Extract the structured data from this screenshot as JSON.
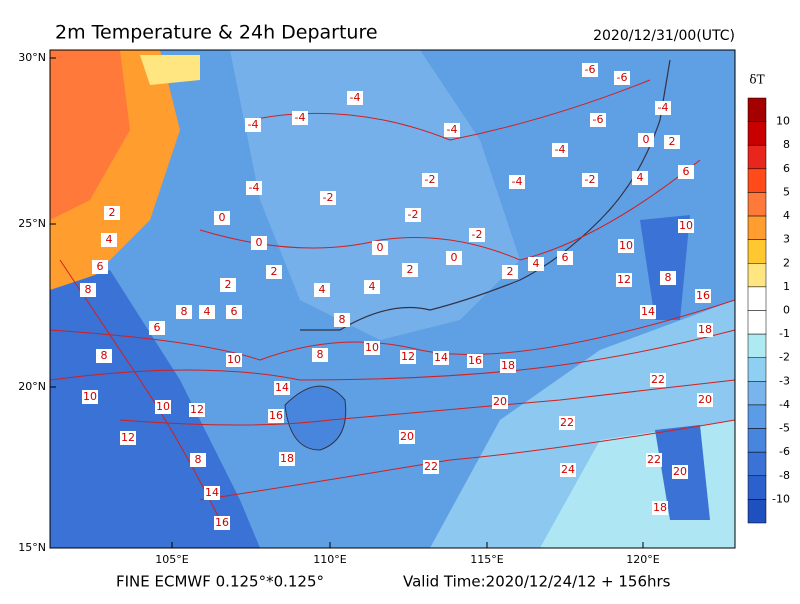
{
  "header": {
    "title": "2m Temperature & 24h Departure",
    "date": "2020/12/31/00(UTC)"
  },
  "footer": {
    "model": "FINE ECMWF 0.125°*0.125°",
    "valid_time": "Valid Time:2020/12/24/12 + 156hrs"
  },
  "axes": {
    "x_labels": [
      "105°E",
      "110°E",
      "115°E",
      "120°E"
    ],
    "y_labels": [
      "30°N",
      "25°N",
      "20°N",
      "15°N"
    ]
  },
  "colorbar": {
    "title": "δT",
    "colors": [
      "#a50000",
      "#c80000",
      "#e8261c",
      "#ff4a1a",
      "#ff7a3a",
      "#ff9e2e",
      "#ffc830",
      "#ffe680",
      "#ffffff",
      "#ffffff",
      "#aeeaf2",
      "#8fd0f2",
      "#7ab4ec",
      "#5c9ce6",
      "#4886de",
      "#3a72d6",
      "#2c60cc",
      "#1f50c0"
    ],
    "labels": [
      "10",
      "8",
      "6",
      "5",
      "4",
      "3",
      "2",
      "1",
      "0",
      "-1",
      "-2",
      "-3",
      "-4",
      "-5",
      "-6",
      "-8",
      "-10"
    ]
  },
  "map": {
    "contour_labels": [
      "-4",
      "-4",
      "-4",
      "-4",
      "-6",
      "-6",
      "-6",
      "-4",
      "-4",
      "0",
      "2",
      "4",
      "6",
      "-2",
      "-4",
      "-2",
      "-2",
      "-2",
      "-2",
      "-4",
      "0",
      "0",
      "2",
      "2",
      "4",
      "4",
      "0",
      "2",
      "0",
      "2",
      "4",
      "6",
      "10",
      "10",
      "12",
      "8",
      "14",
      "16",
      "18",
      "20",
      "22",
      "8",
      "4",
      "6",
      "8",
      "8",
      "10",
      "12",
      "14",
      "16",
      "18",
      "10",
      "14",
      "16",
      "20",
      "22",
      "20",
      "18",
      "22",
      "24",
      "22",
      "20",
      "18",
      "8",
      "10",
      "10",
      "12",
      "12",
      "8",
      "14",
      "16",
      "6",
      "8",
      "6",
      "4",
      "2"
    ]
  }
}
